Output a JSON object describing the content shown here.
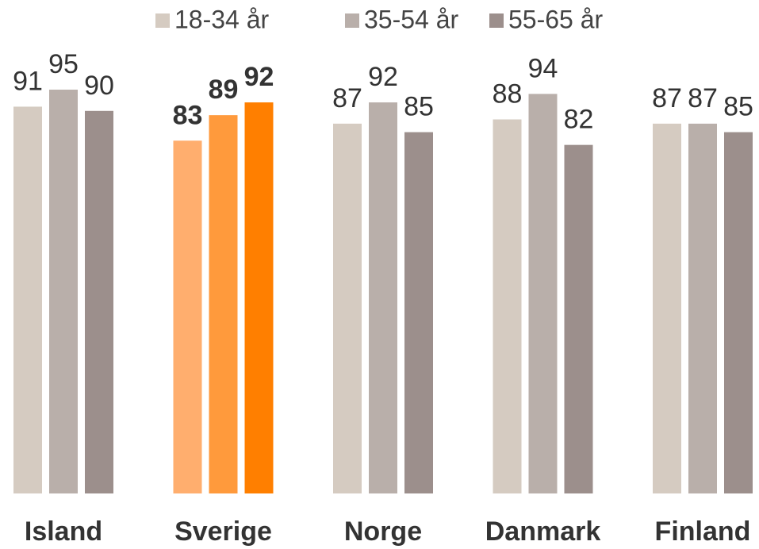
{
  "chart_data": {
    "type": "bar",
    "categories": [
      "Island",
      "Sverige",
      "Norge",
      "Danmark",
      "Finland"
    ],
    "series": [
      {
        "name": "18-34 år",
        "color": "#d5cbc1",
        "highlight_color": "#ffae6e",
        "values": [
          91,
          83,
          87,
          88,
          87
        ]
      },
      {
        "name": "35-54 år",
        "color": "#b9afaa",
        "highlight_color": "#ff9a3c",
        "values": [
          95,
          89,
          92,
          94,
          87
        ]
      },
      {
        "name": "55-65 år",
        "color": "#9c8f8c",
        "highlight_color": "#ff7f00",
        "values": [
          90,
          92,
          85,
          82,
          85
        ]
      }
    ],
    "highlight_category": "Sverige",
    "ylim": [
      0,
      95
    ],
    "legend": "top"
  }
}
